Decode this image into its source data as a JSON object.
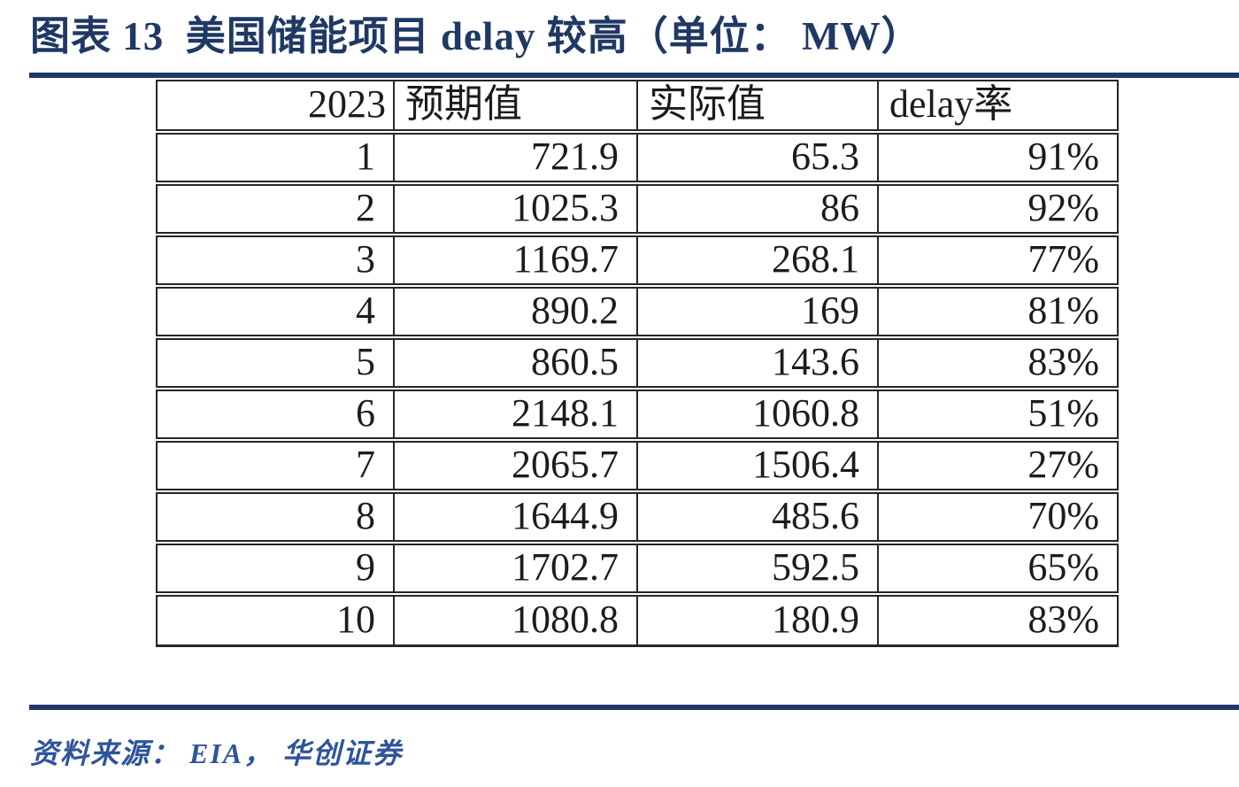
{
  "figure": {
    "title": "图表 13  美国储能项目 delay 较高（单位： MW）",
    "source_note": "资料来源： EIA， 华创证券"
  },
  "colors": {
    "accent_navy": "#1F3864",
    "rule_navy": "#1F3864",
    "source_blue": "#2E549A",
    "table_text": "#1c1c1c",
    "table_border": "#262626",
    "background": "#ffffff"
  },
  "table": {
    "headers": [
      "2023",
      "预期值",
      "实际值",
      "delay率"
    ],
    "column_keys": [
      "month",
      "expected",
      "actual",
      "delay-rate"
    ],
    "rows": [
      [
        "1",
        "721.9",
        "65.3",
        "91%"
      ],
      [
        "2",
        "1025.3",
        "86",
        "92%"
      ],
      [
        "3",
        "1169.7",
        "268.1",
        "77%"
      ],
      [
        "4",
        "890.2",
        "169",
        "81%"
      ],
      [
        "5",
        "860.5",
        "143.6",
        "83%"
      ],
      [
        "6",
        "2148.1",
        "1060.8",
        "51%"
      ],
      [
        "7",
        "2065.7",
        "1506.4",
        "27%"
      ],
      [
        "8",
        "1644.9",
        "485.6",
        "70%"
      ],
      [
        "9",
        "1702.7",
        "592.5",
        "65%"
      ],
      [
        "10",
        "1080.8",
        "180.9",
        "83%"
      ]
    ]
  },
  "chart_data": {
    "type": "table",
    "title": "图表 13 美国储能项目 delay 较高（单位：MW）",
    "unit": "MW",
    "columns": [
      "2023 (月)",
      "预期值",
      "实际值",
      "delay率"
    ],
    "categories": [
      "1",
      "2",
      "3",
      "4",
      "5",
      "6",
      "7",
      "8",
      "9",
      "10"
    ],
    "series": [
      {
        "name": "预期值",
        "values": [
          721.9,
          1025.3,
          1169.7,
          890.2,
          860.5,
          2148.1,
          2065.7,
          1644.9,
          1702.7,
          1080.8
        ]
      },
      {
        "name": "实际值",
        "values": [
          65.3,
          86,
          268.1,
          169,
          143.6,
          1060.8,
          1506.4,
          485.6,
          592.5,
          180.9
        ]
      },
      {
        "name": "delay率",
        "values": [
          "91%",
          "92%",
          "77%",
          "81%",
          "83%",
          "51%",
          "27%",
          "70%",
          "65%",
          "83%"
        ]
      }
    ],
    "source": "资料来源：EIA，华创证券"
  }
}
